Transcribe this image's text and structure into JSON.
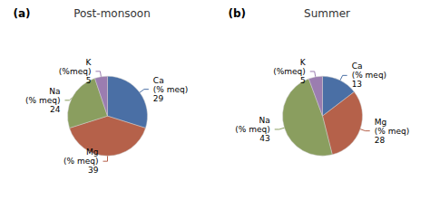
{
  "chart_data": [
    {
      "type": "pie",
      "title": "Post-monsoon",
      "annotation": "(a)",
      "categories": [
        "Ca\n(% meq)\n29",
        "Mg\n(% meq)\n39",
        "Na\n(% meq)\n24",
        "K\n(%meq)\n5"
      ],
      "values": [
        29,
        39,
        24,
        5
      ],
      "colors": [
        "#4a6fa5",
        "#b5614a",
        "#8a9e5f",
        "#9b7db0"
      ]
    },
    {
      "type": "pie",
      "title": "Summer",
      "annotation": "(b)",
      "categories": [
        "Ca\n(% meq)\n13",
        "Mg\n(% meq)\n28",
        "Na\n(% meq)\n43",
        "K\n(%meq)\n5"
      ],
      "values": [
        13,
        28,
        43,
        5
      ],
      "colors": [
        "#4a6fa5",
        "#b5614a",
        "#8a9e5f",
        "#9b7db0"
      ]
    }
  ]
}
